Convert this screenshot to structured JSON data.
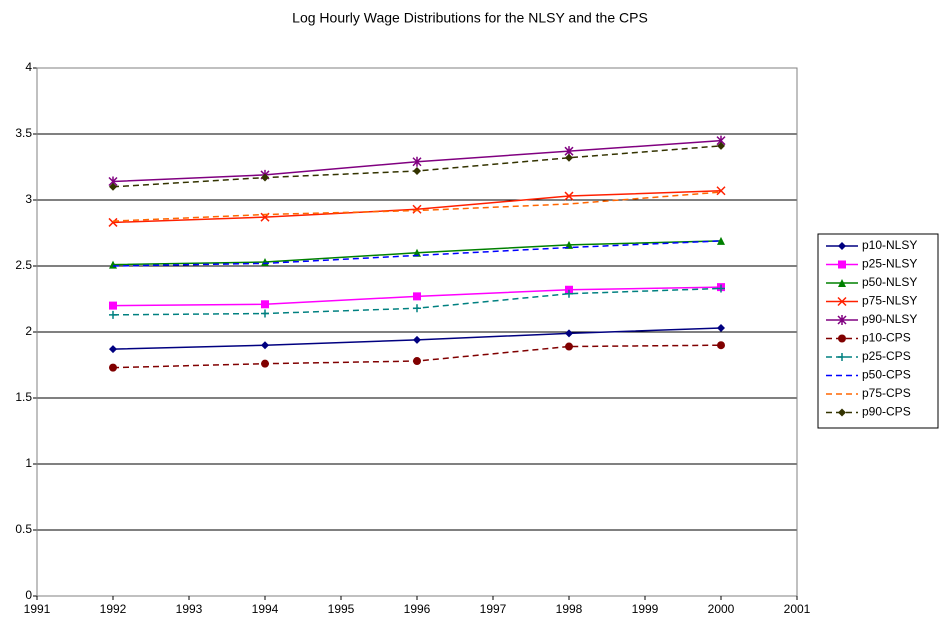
{
  "chart_data": {
    "type": "line",
    "title": "Log Hourly Wage Distributions for the NLSY and the CPS",
    "x": [
      1992,
      1994,
      1996,
      1998,
      2000
    ],
    "xlim": [
      1991,
      2001
    ],
    "xticks": [
      1991,
      1992,
      1993,
      1994,
      1995,
      1996,
      1997,
      1998,
      1999,
      2000,
      2001
    ],
    "ylim": [
      0,
      4
    ],
    "yticks": [
      0,
      0.5,
      1,
      1.5,
      2,
      2.5,
      3,
      3.5,
      4
    ],
    "grid": true,
    "legend": "right",
    "series": [
      {
        "name": "p10-NLSY",
        "color": "#000080",
        "marker": "diamond",
        "dashed": false,
        "values": [
          1.87,
          1.9,
          1.94,
          1.99,
          2.03
        ]
      },
      {
        "name": "p25-NLSY",
        "color": "#ff00ff",
        "marker": "square",
        "dashed": false,
        "values": [
          2.2,
          2.21,
          2.27,
          2.32,
          2.34
        ]
      },
      {
        "name": "p50-NLSY",
        "color": "#008000",
        "marker": "triangle",
        "dashed": false,
        "values": [
          2.51,
          2.53,
          2.6,
          2.66,
          2.69
        ]
      },
      {
        "name": "p75-NLSY",
        "color": "#ff2000",
        "marker": "x",
        "dashed": false,
        "values": [
          2.83,
          2.87,
          2.93,
          3.03,
          3.07
        ]
      },
      {
        "name": "p90-NLSY",
        "color": "#800080",
        "marker": "star",
        "dashed": false,
        "values": [
          3.14,
          3.19,
          3.29,
          3.37,
          3.45
        ]
      },
      {
        "name": "p10-CPS",
        "color": "#800000",
        "marker": "circle",
        "dashed": true,
        "values": [
          1.73,
          1.76,
          1.78,
          1.89,
          1.9
        ]
      },
      {
        "name": "p25-CPS",
        "color": "#008080",
        "marker": "plus",
        "dashed": true,
        "values": [
          2.13,
          2.14,
          2.18,
          2.29,
          2.33
        ]
      },
      {
        "name": "p50-CPS",
        "color": "#0000ff",
        "marker": "none",
        "dashed": true,
        "values": [
          2.5,
          2.52,
          2.58,
          2.64,
          2.69
        ]
      },
      {
        "name": "p75-CPS",
        "color": "#ff6600",
        "marker": "none",
        "dashed": true,
        "values": [
          2.84,
          2.89,
          2.92,
          2.97,
          3.06
        ]
      },
      {
        "name": "p90-CPS",
        "color": "#333300",
        "marker": "diamond",
        "dashed": true,
        "values": [
          3.1,
          3.17,
          3.22,
          3.32,
          3.41
        ]
      }
    ]
  }
}
